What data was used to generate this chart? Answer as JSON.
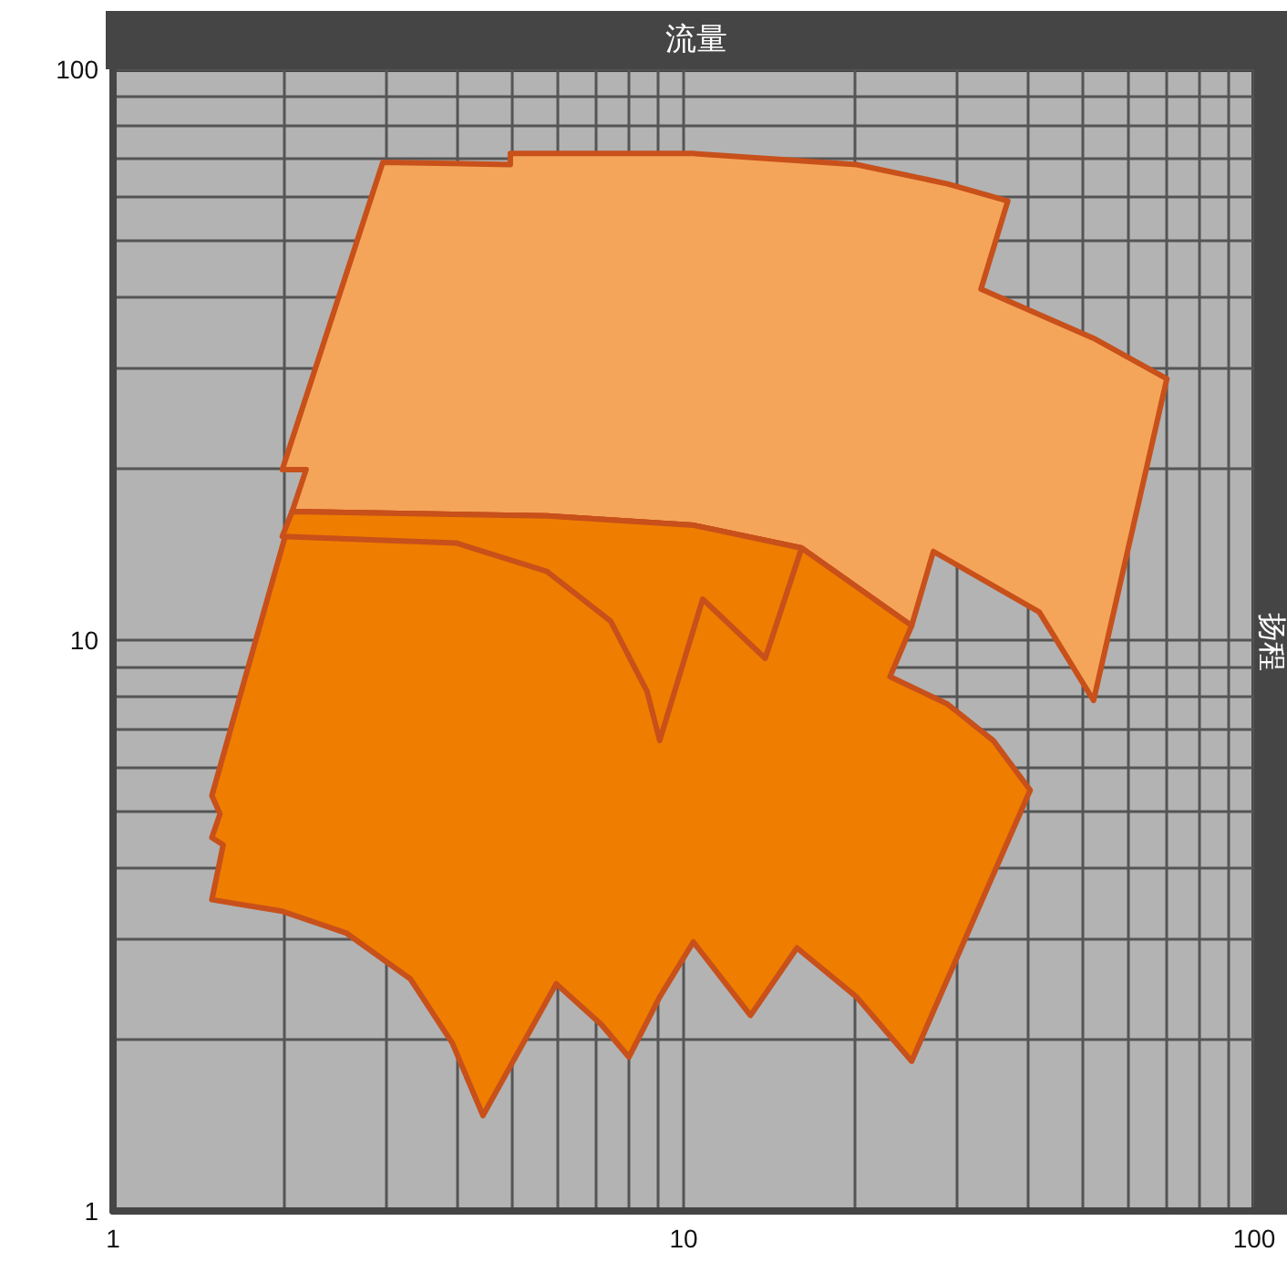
{
  "chart_data": {
    "type": "area",
    "xlabel": "流量",
    "ylabel": "扬程",
    "log": "xy",
    "grid": true,
    "xlim": [
      1,
      100
    ],
    "ylim": [
      1,
      100
    ],
    "xticks": [
      1,
      10,
      100
    ],
    "yticks": [
      1,
      10,
      100
    ],
    "series": [
      {
        "color": "#f5a55a",
        "x": [
          1.98,
          2.97,
          4.97,
          4.97,
          10.4,
          20.1,
          29,
          37,
          33.2,
          52.3,
          70.3,
          52.3,
          42,
          27.4,
          25.1,
          16.1,
          10.4,
          5.76,
          2.06,
          2.18
        ],
        "values": [
          19.9,
          68.7,
          68.1,
          71.2,
          71.2,
          68.1,
          63,
          58.8,
          41.2,
          33.8,
          28.7,
          7.84,
          11.2,
          14.3,
          10.6,
          14.5,
          15.9,
          16.5,
          16.8,
          19.9
        ]
      },
      {
        "color": "#ef7d00",
        "x": [
          2.06,
          5.76,
          10.4,
          16.1,
          25.1,
          23,
          29,
          34.9,
          40.5,
          25.1,
          20.1,
          15.8,
          13.1,
          10.4,
          9.08,
          8.02,
          7.18,
          5.98,
          4.45,
          3.93,
          3.32,
          2.56,
          1.98,
          1.49,
          1.56,
          1.49,
          1.54,
          1.49
        ],
        "values": [
          16.8,
          16.5,
          15.9,
          14.5,
          10.6,
          8.63,
          7.73,
          6.67,
          5.46,
          1.83,
          2.37,
          2.89,
          2.2,
          2.96,
          2.37,
          1.86,
          2.12,
          2.5,
          1.47,
          1.97,
          2.55,
          3.07,
          3.35,
          3.51,
          4.38,
          4.51,
          4.96,
          5.34
        ]
      },
      {
        "color": "#ef7d00",
        "x": [
          1.98,
          3.99,
          5.76,
          7.45,
          8.63,
          9.08,
          10.8,
          13.9,
          16.1,
          10.4,
          5.76,
          2.06
        ],
        "values": [
          15.2,
          14.8,
          13.2,
          10.8,
          8.13,
          6.67,
          11.8,
          9.29,
          14.5,
          15.9,
          16.5,
          16.8
        ]
      }
    ]
  }
}
